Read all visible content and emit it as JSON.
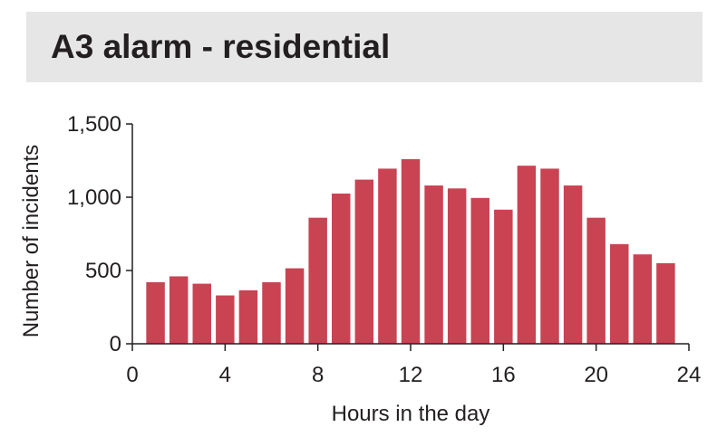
{
  "header": {
    "title": "A3 alarm - residential"
  },
  "colors": {
    "bar": "#c94353",
    "axis": "#231f20",
    "band": "#e6e6e7"
  },
  "chart_data": {
    "type": "bar",
    "title": "A3 alarm - residential",
    "xlabel": "Hours in the day",
    "ylabel": "Number of incidents",
    "x": [
      1,
      2,
      3,
      4,
      5,
      6,
      7,
      8,
      9,
      10,
      11,
      12,
      13,
      14,
      15,
      16,
      17,
      18,
      19,
      20,
      21,
      22,
      23
    ],
    "values": [
      420,
      460,
      410,
      330,
      365,
      420,
      515,
      860,
      1025,
      1120,
      1195,
      1260,
      1080,
      1060,
      995,
      915,
      1215,
      1195,
      1080,
      860,
      680,
      610,
      550
    ],
    "xlim": [
      0,
      24
    ],
    "ylim": [
      0,
      1500
    ],
    "xticks": [
      "0",
      "4",
      "8",
      "12",
      "16",
      "20",
      "24"
    ],
    "yticks": [
      "0",
      "500",
      "1,000",
      "1,500"
    ],
    "grid": false
  }
}
